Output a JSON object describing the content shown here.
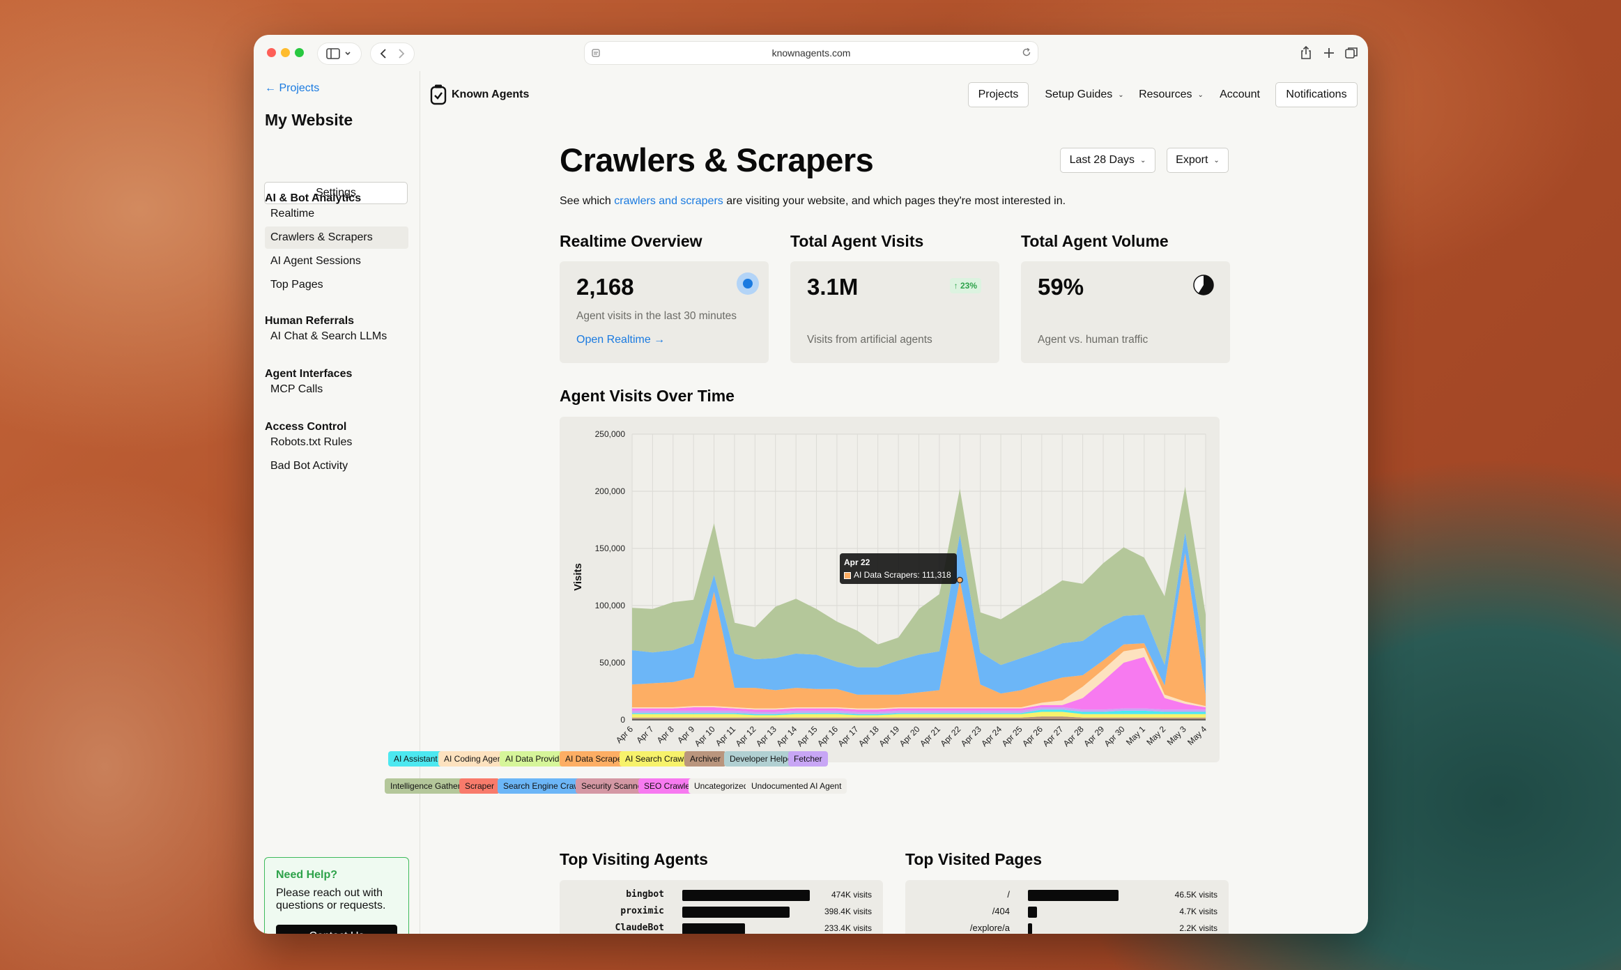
{
  "browser": {
    "url": "knownagents.com"
  },
  "sidebar": {
    "back_label": "← Projects",
    "site_name": "My Website",
    "settings_label": "Settings",
    "sections": [
      {
        "heading": "AI & Bot Analytics",
        "items": [
          "Realtime",
          "Crawlers & Scrapers",
          "AI Agent Sessions",
          "Top Pages"
        ]
      },
      {
        "heading": "Human Referrals",
        "items": [
          "AI Chat & Search LLMs"
        ]
      },
      {
        "heading": "Agent Interfaces",
        "items": [
          "MCP Calls"
        ]
      },
      {
        "heading": "Access Control",
        "items": [
          "Robots.txt Rules",
          "Bad Bot Activity"
        ]
      }
    ],
    "active_item": "Crawlers & Scrapers",
    "help": {
      "title": "Need Help?",
      "text": "Please reach out with questions or requests.",
      "button": "Contact Us"
    }
  },
  "topbar": {
    "brand": "Known Agents",
    "nav": {
      "projects": "Projects",
      "setup_guides": "Setup Guides",
      "resources": "Resources",
      "account": "Account",
      "notifications": "Notifications"
    }
  },
  "main": {
    "title": "Crawlers & Scrapers",
    "range_label": "Last 28 Days",
    "export_label": "Export",
    "subtitle_pre": "See which ",
    "subtitle_link": "crawlers and scrapers",
    "subtitle_post": " are visiting your website, and which pages they're most interested in.",
    "cards": [
      {
        "title": "Realtime Overview",
        "value": "2,168",
        "desc": "Agent visits in the last 30 minutes",
        "link": "Open Realtime →"
      },
      {
        "title": "Total Agent Visits",
        "value": "3.1M",
        "badge": "↑ 23%",
        "desc": "Visits from artificial agents"
      },
      {
        "title": "Total Agent Volume",
        "value": "59%",
        "desc": "Agent vs. human traffic",
        "pie_fraction": 0.59
      }
    ],
    "chart_section_title": "Agent Visits Over Time",
    "tooltip": {
      "date": "Apr 22",
      "text": "AI Data Scrapers: 111,318"
    },
    "top_agents_title": "Top Visiting Agents",
    "top_pages_title": "Top Visited Pages",
    "top_agents": [
      {
        "name": "bingbot",
        "label": "474K visits",
        "value": 474000
      },
      {
        "name": "proximic",
        "label": "398.4K visits",
        "value": 398400
      },
      {
        "name": "ClaudeBot",
        "label": "233.4K visits",
        "value": 233400
      }
    ],
    "top_pages": [
      {
        "name": "/",
        "label": "46.5K visits",
        "value": 46500
      },
      {
        "name": "/404",
        "label": "4.7K visits",
        "value": 4700
      },
      {
        "name": "/explore/a",
        "label": "2.2K visits",
        "value": 2200
      }
    ]
  },
  "legend": [
    {
      "name": "AI Assistant",
      "color": "#4de8f0"
    },
    {
      "name": "AI Coding Agent",
      "color": "#fde2bf"
    },
    {
      "name": "AI Data Provider",
      "color": "#d6f59a"
    },
    {
      "name": "AI Data Scraper",
      "color": "#fdae64"
    },
    {
      "name": "AI Search Crawler",
      "color": "#f7f26b"
    },
    {
      "name": "Archiver",
      "color": "#b9957d"
    },
    {
      "name": "Developer Helper",
      "color": "#b1d0d2"
    },
    {
      "name": "Fetcher",
      "color": "#c8a6f5"
    },
    {
      "name": "Intelligence Gatherer",
      "color": "#b4c79a"
    },
    {
      "name": "Scraper",
      "color": "#f87b6b"
    },
    {
      "name": "Search Engine Crawler",
      "color": "#6cb6f7"
    },
    {
      "name": "Security Scanner",
      "color": "#d498a4"
    },
    {
      "name": "SEO Crawler",
      "color": "#f77af0"
    },
    {
      "name": "Uncategorized",
      "color": "#ecebe6"
    },
    {
      "name": "Undocumented AI Agent",
      "color": "#f4f3ee"
    }
  ],
  "chart_data": {
    "type": "area",
    "stacked": true,
    "ylabel": "Visits",
    "ylim": [
      0,
      250000
    ],
    "yticks": [
      0,
      50000,
      100000,
      150000,
      200000,
      250000
    ],
    "ytick_labels": [
      "0",
      "50,000",
      "100,000",
      "150,000",
      "200,000",
      "250,000"
    ],
    "x": [
      "Apr 6",
      "Apr 7",
      "Apr 8",
      "Apr 9",
      "Apr 10",
      "Apr 11",
      "Apr 12",
      "Apr 13",
      "Apr 14",
      "Apr 15",
      "Apr 16",
      "Apr 17",
      "Apr 18",
      "Apr 19",
      "Apr 20",
      "Apr 21",
      "Apr 22",
      "Apr 23",
      "Apr 24",
      "Apr 25",
      "Apr 26",
      "Apr 27",
      "Apr 28",
      "Apr 29",
      "Apr 30",
      "May 1",
      "May 2",
      "May 3",
      "May 4"
    ],
    "grid": true,
    "series": [
      {
        "name": "Archiver",
        "color": "#b9957d",
        "values": [
          2000,
          2000,
          2000,
          2000,
          2000,
          2000,
          2000,
          2000,
          2000,
          2000,
          2000,
          2000,
          2000,
          2000,
          2000,
          2000,
          2000,
          2000,
          2000,
          2000,
          3000,
          3000,
          2000,
          2000,
          2000,
          2000,
          2000,
          2000,
          2000
        ]
      },
      {
        "name": "AI Search Crawler",
        "color": "#f7f26b",
        "values": [
          3000,
          3000,
          3000,
          3000,
          3000,
          3000,
          2000,
          2000,
          3000,
          3000,
          3000,
          2000,
          2000,
          3000,
          3000,
          3000,
          3000,
          3000,
          3000,
          3000,
          4000,
          4000,
          3000,
          3000,
          3000,
          3000,
          3000,
          3000,
          3000
        ]
      },
      {
        "name": "AI Assistant",
        "color": "#4de8f0",
        "values": [
          1000,
          1000,
          1000,
          1000,
          1000,
          1000,
          1000,
          1000,
          1000,
          1000,
          1000,
          1000,
          1000,
          1000,
          1000,
          1000,
          1000,
          1000,
          1000,
          1000,
          2000,
          2000,
          2000,
          2000,
          3000,
          3000,
          2000,
          2000,
          2000
        ]
      },
      {
        "name": "Fetcher",
        "color": "#c8a6f5",
        "values": [
          2000,
          2000,
          2000,
          2000,
          2000,
          2000,
          2000,
          2000,
          2000,
          2000,
          2000,
          2000,
          2000,
          2000,
          2000,
          2000,
          2000,
          2000,
          2000,
          2000,
          2000,
          2000,
          2000,
          2000,
          2000,
          2000,
          2000,
          2000,
          2000
        ]
      },
      {
        "name": "SEO Crawler",
        "color": "#f77af0",
        "values": [
          2000,
          2000,
          2000,
          3000,
          3000,
          2000,
          2000,
          2000,
          2000,
          2000,
          2000,
          2000,
          2000,
          2000,
          2000,
          2000,
          2000,
          2000,
          2000,
          2000,
          2000,
          2000,
          10000,
          25000,
          40000,
          45000,
          10000,
          5000,
          2000
        ]
      },
      {
        "name": "AI Coding Agent",
        "color": "#fde2bf",
        "values": [
          1000,
          1000,
          1000,
          1000,
          1000,
          1000,
          1000,
          1000,
          1000,
          1000,
          1000,
          1000,
          1000,
          1000,
          1000,
          1000,
          1000,
          1000,
          1000,
          1000,
          2000,
          4000,
          10000,
          10000,
          10000,
          8000,
          3000,
          2000,
          1000
        ]
      },
      {
        "name": "AI Data Scraper",
        "color": "#fdae64",
        "values": [
          20000,
          21000,
          22000,
          25000,
          100000,
          17000,
          18000,
          16000,
          17000,
          16000,
          16000,
          12000,
          12000,
          11000,
          13000,
          15000,
          111318,
          20000,
          12000,
          15000,
          17000,
          20000,
          10000,
          8000,
          6000,
          4000,
          8000,
          130000,
          10000
        ]
      },
      {
        "name": "Search Engine Crawler",
        "color": "#6cb6f7",
        "values": [
          30000,
          27000,
          28000,
          30000,
          15000,
          30000,
          25000,
          28000,
          30000,
          30000,
          24000,
          24000,
          24000,
          30000,
          33000,
          34000,
          40000,
          28000,
          25000,
          28000,
          28000,
          30000,
          30000,
          30000,
          25000,
          25000,
          18000,
          18000,
          30000
        ]
      },
      {
        "name": "Intelligence Gatherer",
        "color": "#b4c79a",
        "values": [
          37000,
          38000,
          42000,
          38000,
          45000,
          27000,
          28000,
          45000,
          48000,
          40000,
          35000,
          32000,
          20000,
          20000,
          40000,
          50000,
          40000,
          35000,
          40000,
          45000,
          50000,
          55000,
          50000,
          55000,
          60000,
          50000,
          60000,
          40000,
          40000
        ]
      }
    ]
  }
}
